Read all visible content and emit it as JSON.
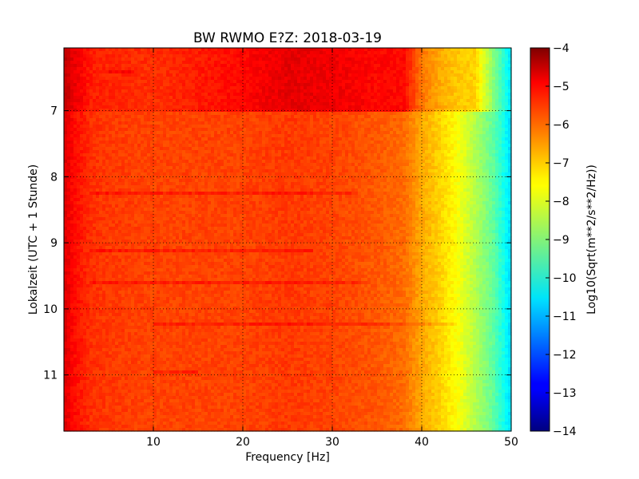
{
  "chart_data": {
    "type": "heatmap",
    "title": "BW RWMO E?Z: 2018-03-19",
    "xlabel": "Frequency [Hz]",
    "ylabel": "Lokalzeit (UTC + 1 Stunde)",
    "xlim": [
      0,
      50
    ],
    "ylim": [
      11.85,
      6.05
    ],
    "y_axis_inverted": true,
    "x_ticks": [
      10,
      20,
      30,
      40,
      50
    ],
    "y_ticks": [
      7,
      8,
      9,
      10,
      11
    ],
    "grid": true,
    "grid_style": "dotted",
    "colormap": "jet",
    "colorbar": {
      "label": "Log10(Sqrt(m**2/s**2/Hz))",
      "range": [
        -14,
        -4
      ],
      "ticks": [
        -4,
        -5,
        -6,
        -7,
        -8,
        -9,
        -10,
        -11,
        -12,
        -13,
        -14
      ]
    },
    "spectral_profile": {
      "description_values_hz": [
        0,
        1,
        3,
        5,
        10,
        15,
        20,
        25,
        30,
        35,
        38,
        40,
        42,
        44,
        46,
        48,
        50
      ],
      "before_7h": [
        -4.6,
        -5.0,
        -5.5,
        -5.6,
        -5.7,
        -5.5,
        -5.3,
        -5.0,
        -5.1,
        -5.3,
        -5.3,
        -6.4,
        -6.9,
        -7.2,
        -7.3,
        -8.9,
        -10.5
      ],
      "after_7h": [
        -4.9,
        -5.3,
        -5.7,
        -5.8,
        -5.9,
        -5.9,
        -5.9,
        -5.8,
        -5.9,
        -6.1,
        -6.3,
        -6.9,
        -7.3,
        -7.8,
        -8.5,
        -9.3,
        -10.6
      ]
    },
    "horizontal_bands": [
      {
        "time": 6.4,
        "from_hz": 5,
        "to_hz": 8
      },
      {
        "time": 8.25,
        "from_hz": 3,
        "to_hz": 33
      },
      {
        "time": 9.12,
        "from_hz": 3,
        "to_hz": 28
      },
      {
        "time": 9.6,
        "from_hz": 3,
        "to_hz": 34
      },
      {
        "time": 10.22,
        "from_hz": 10,
        "to_hz": 44
      },
      {
        "time": 10.97,
        "from_hz": 10,
        "to_hz": 15
      }
    ]
  }
}
